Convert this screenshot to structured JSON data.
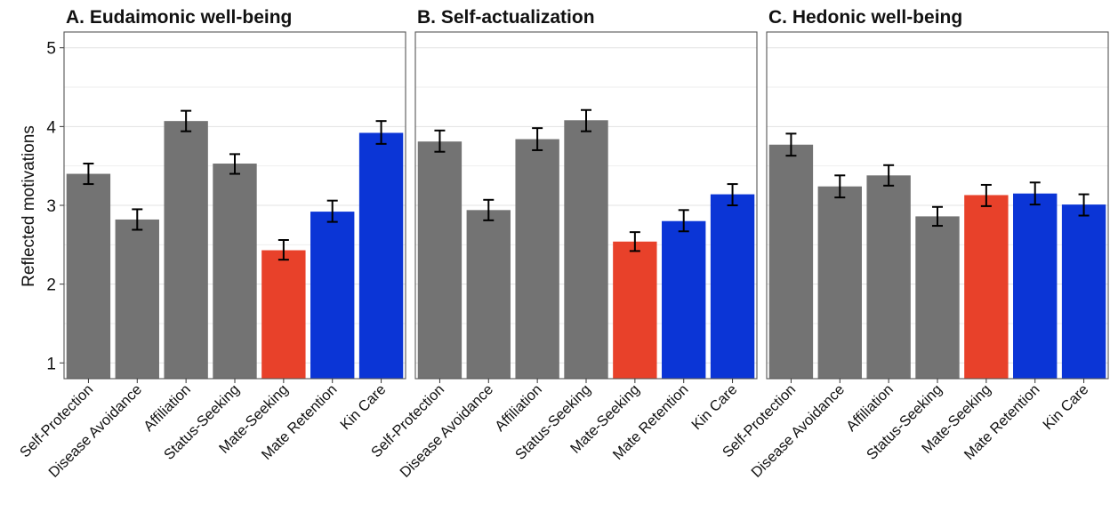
{
  "chart_data": {
    "type": "bar",
    "ylabel": "Reflected motivations",
    "ylim": [
      0.8,
      5.2
    ],
    "yticks": [
      1,
      2,
      3,
      4,
      5
    ],
    "categories": [
      "Self-Protection",
      "Disease Avoidance",
      "Affiliation",
      "Status-Seeking",
      "Mate-Seeking",
      "Mate Retention",
      "Kin Care"
    ],
    "bar_colors": [
      "#737373",
      "#737373",
      "#737373",
      "#737373",
      "#e8412a",
      "#0b35d6",
      "#0b35d6"
    ],
    "grid": true,
    "panels": [
      {
        "title": "A. Eudaimonic well-being",
        "values": [
          3.4,
          2.82,
          4.07,
          3.53,
          2.43,
          2.92,
          3.92
        ],
        "err_low": [
          3.27,
          2.69,
          3.94,
          3.4,
          2.31,
          2.79,
          3.78
        ],
        "err_high": [
          3.53,
          2.95,
          4.2,
          3.65,
          2.56,
          3.06,
          4.07
        ]
      },
      {
        "title": "B. Self-actualization",
        "values": [
          3.81,
          2.94,
          3.84,
          4.08,
          2.54,
          2.8,
          3.14
        ],
        "err_low": [
          3.68,
          2.81,
          3.7,
          3.94,
          2.42,
          2.67,
          3.0
        ],
        "err_high": [
          3.95,
          3.07,
          3.98,
          4.21,
          2.66,
          2.94,
          3.27
        ]
      },
      {
        "title": "C. Hedonic well-being",
        "values": [
          3.77,
          3.24,
          3.38,
          2.86,
          3.13,
          3.15,
          3.01
        ],
        "err_low": [
          3.63,
          3.1,
          3.25,
          2.74,
          2.99,
          3.01,
          2.87
        ],
        "err_high": [
          3.91,
          3.38,
          3.51,
          2.98,
          3.26,
          3.29,
          3.14
        ]
      }
    ]
  }
}
